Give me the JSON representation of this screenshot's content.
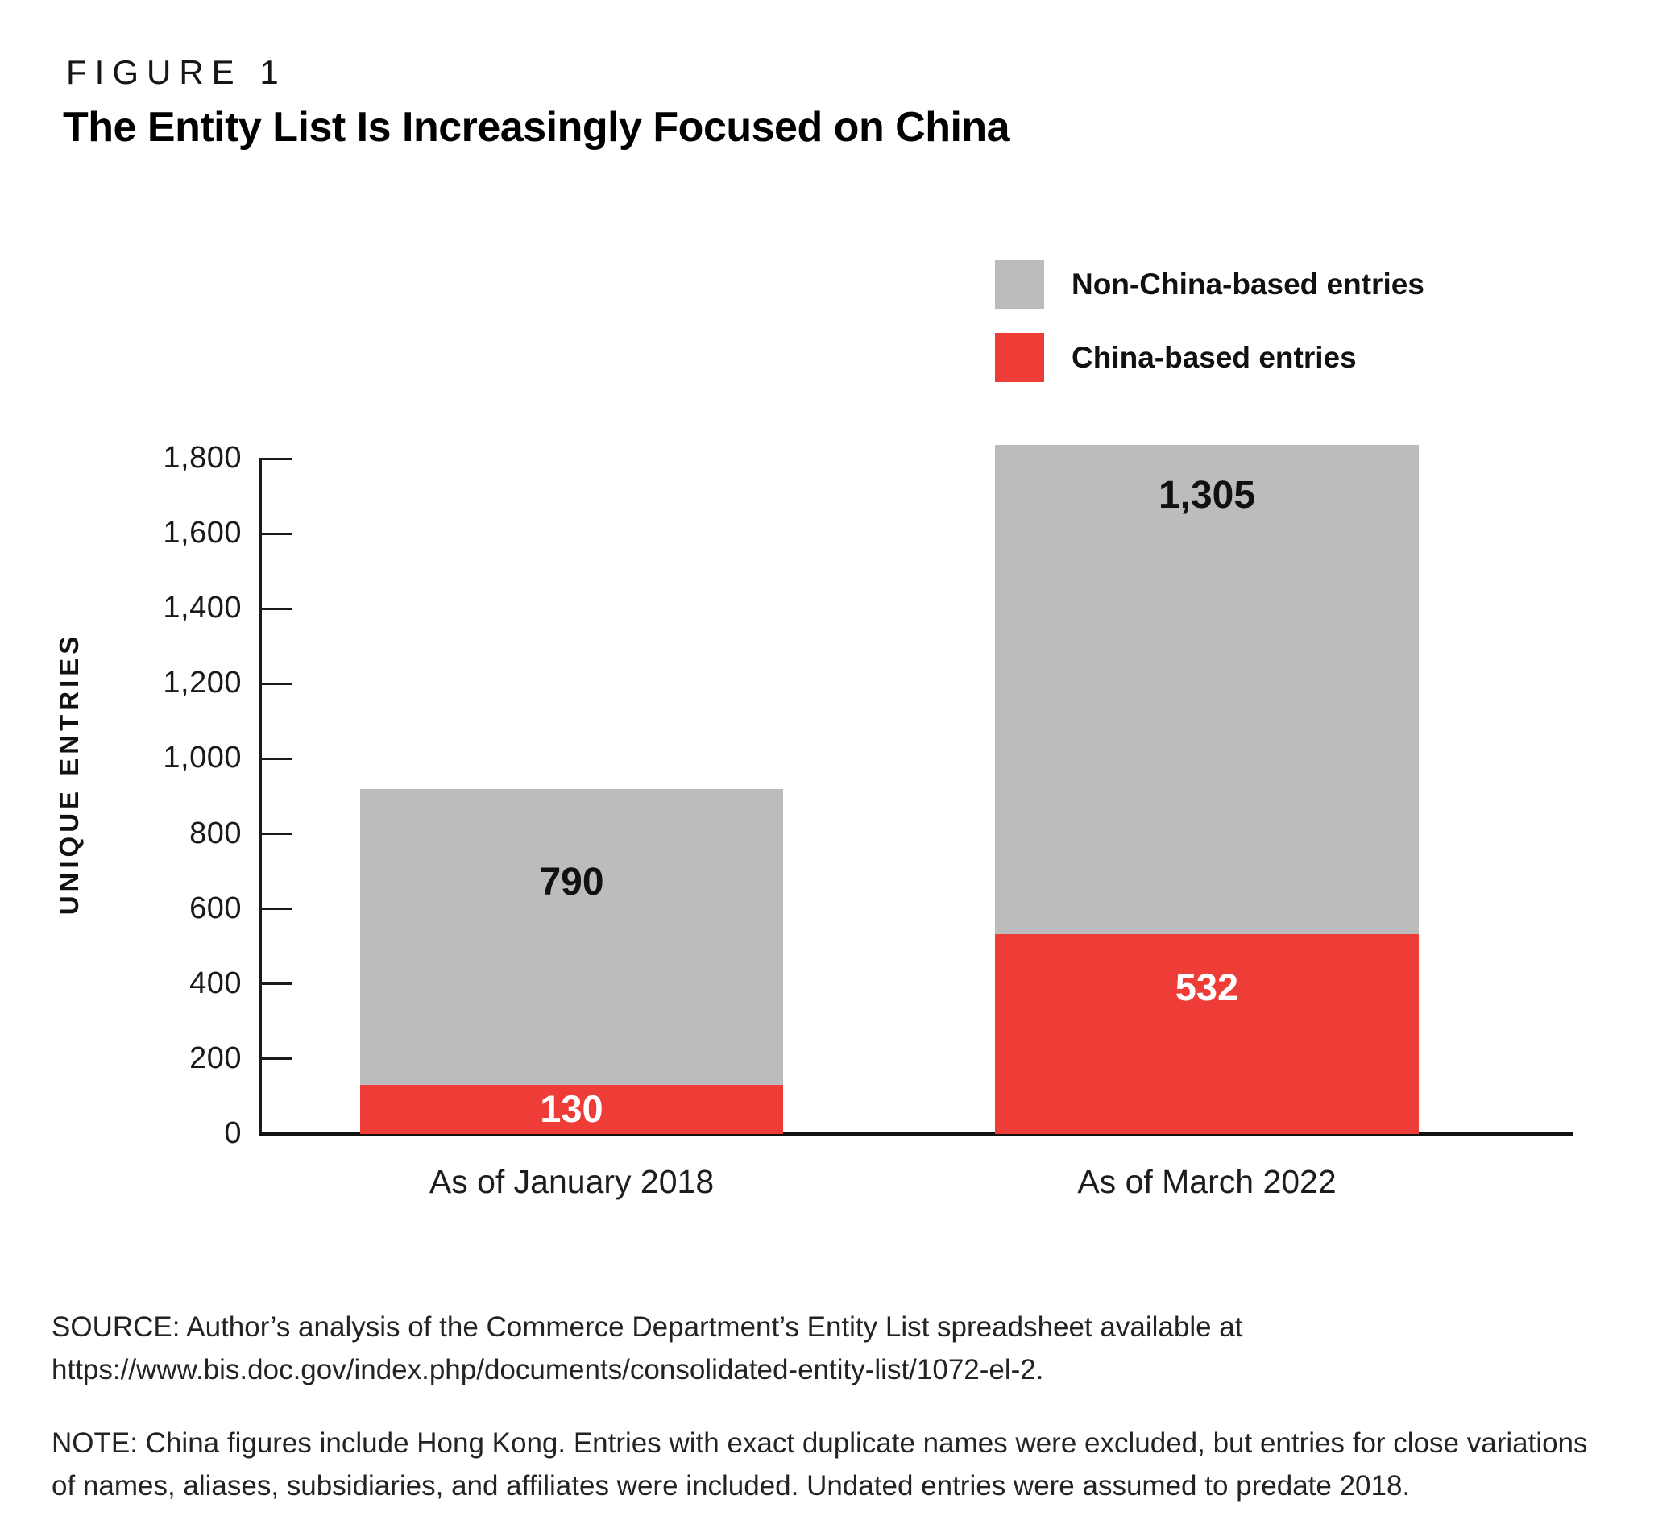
{
  "header": {
    "figure_label": "FIGURE 1",
    "title": "The Entity List Is Increasingly Focused on China"
  },
  "legend": {
    "items": [
      {
        "label": "Non-China-based entries",
        "color": "#bcbcbe"
      },
      {
        "label": "China-based entries",
        "color": "#ee3c36"
      }
    ]
  },
  "chart_data": {
    "type": "bar",
    "stacked": true,
    "title": "The Entity List Is Increasingly Focused on China",
    "categories": [
      "As of January 2018",
      "As of March 2022"
    ],
    "series": [
      {
        "name": "Non-China-based entries",
        "color": "#bcbcbe",
        "values": [
          790,
          1305
        ],
        "value_labels": [
          "790",
          "1,305"
        ],
        "label_color": "#111111"
      },
      {
        "name": "China-based entries",
        "color": "#ee3c36",
        "values": [
          130,
          532
        ],
        "value_labels": [
          "130",
          "532"
        ],
        "label_color": "#ffffff"
      }
    ],
    "totals": [
      920,
      1837
    ],
    "xlabel": "",
    "ylabel": "UNIQUE ENTRIES",
    "ylim": [
      0,
      1800
    ],
    "ytick_interval": 200,
    "ytick_labels": [
      "0",
      "200",
      "400",
      "600",
      "800",
      "1,000",
      "1,200",
      "1,400",
      "1,600",
      "1,800"
    ],
    "legend_position": "top-right",
    "grid": false
  },
  "source": {
    "lines": [
      "SOURCE: Author’s analysis of the Commerce Department’s Entity List spreadsheet available at",
      "https://www.bis.doc.gov/index.php/documents/consolidated-entity-list/1072-el-2."
    ]
  },
  "note": {
    "lines": [
      "NOTE: China figures include Hong Kong. Entries with exact duplicate names were excluded, but entries for close variations",
      "of names, aliases, subsidiaries, and affiliates were included. Undated entries were assumed to predate 2018."
    ]
  }
}
